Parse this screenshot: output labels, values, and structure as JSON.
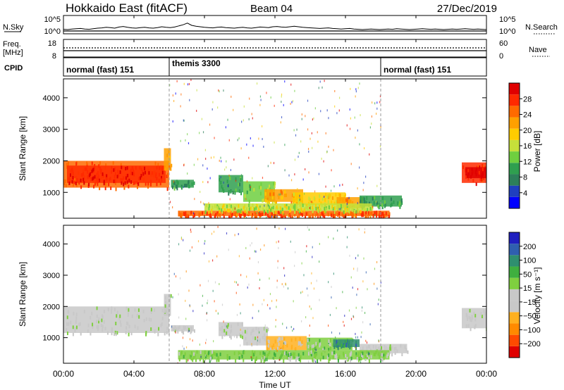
{
  "header": {
    "station": "Hokkaido East (fitACF)",
    "beam": "Beam 04",
    "date": "27/Dec/2019"
  },
  "noise_panel": {
    "left_label": "N.Sky",
    "right_label": "N.Search",
    "ticks": [
      "10^5",
      "10^0"
    ],
    "sky_noise_levels": [
      0.6,
      0.5,
      0.7,
      0.8,
      0.9,
      0.7,
      0.6,
      0.8,
      1.0,
      1.1,
      1.3,
      1.2,
      1.0,
      1.4,
      1.6,
      1.3,
      1.1,
      1.0,
      1.2,
      1.3,
      1.1,
      1.0,
      1.2,
      1.5,
      1.3,
      1.2,
      1.4,
      1.8,
      2.2,
      2.8,
      2.0,
      1.7,
      1.5,
      1.3,
      1.2,
      1.1,
      1.3,
      1.4,
      1.2,
      1.1,
      1.0,
      1.2,
      1.3,
      1.1,
      1.0,
      1.2,
      1.4,
      1.3,
      1.2,
      1.5,
      1.6,
      1.4,
      1.3,
      1.5,
      1.7,
      1.5,
      1.3,
      1.2,
      1.1,
      1.0,
      0.9,
      1.0,
      1.1,
      0.9,
      0.8,
      0.7,
      0.8,
      0.9,
      0.7,
      0.6,
      0.5,
      0.6,
      0.7,
      0.6,
      0.5,
      0.6,
      0.7,
      0.6,
      0.8,
      0.7,
      0.6,
      0.5,
      0.6,
      0.7,
      0.8,
      0.7,
      0.6,
      0.7,
      0.6,
      0.5,
      0.6,
      0.7,
      0.6,
      0.7,
      0.8,
      0.7,
      0.6,
      0.7,
      0.6,
      0.5
    ]
  },
  "freq_panel": {
    "left_label": "Freq.",
    "left_unit": "[MHz]",
    "left_ticks": [
      "18",
      "8"
    ],
    "right_label": "Nave",
    "right_ticks": [
      "60",
      "0"
    ]
  },
  "cpid_panel": {
    "label": "CPID",
    "segments": [
      {
        "name": "normal (fast) 151",
        "start_hour": 0
      },
      {
        "name": "themis 3300",
        "start_hour": 6
      },
      {
        "name": "normal (fast) 151",
        "start_hour": 18
      }
    ]
  },
  "x_axis": {
    "label": "Time UT",
    "ticks": [
      "00:00",
      "04:00",
      "08:00",
      "12:00",
      "16:00",
      "20:00",
      "00:00"
    ],
    "range_hours": [
      0,
      24
    ]
  },
  "chart_data": [
    {
      "type": "heatmap",
      "quantity": "Power",
      "ylabel": "Slant Range [km]",
      "yticks": [
        1000,
        2000,
        3000,
        4000
      ],
      "ylim": [
        180,
        4600
      ],
      "colorbar_label": "Power [dB]",
      "colorbar_ticks": [
        "28",
        "24",
        "20",
        "16",
        "12",
        "8",
        "4"
      ],
      "colors": [
        "#0000ff",
        "#1f3fbf",
        "#2d7f5a",
        "#2f9f4f",
        "#6fcf3f",
        "#c6e03a",
        "#ffcc00",
        "#ffa000",
        "#ff6a00",
        "#ff2a00",
        "#e00000"
      ],
      "vlim": [
        0,
        32
      ],
      "regions": [
        {
          "t0": 0.0,
          "t1": 6.0,
          "r0": 1150,
          "r1": 2000,
          "v": 26
        },
        {
          "t0": 0.2,
          "t1": 5.8,
          "r0": 1300,
          "r1": 1850,
          "v": 29
        },
        {
          "t0": 5.7,
          "t1": 6.1,
          "r0": 1700,
          "r1": 2400,
          "v": 22
        },
        {
          "t0": 6.1,
          "t1": 7.4,
          "r0": 1150,
          "r1": 1400,
          "v": 9
        },
        {
          "t0": 8.8,
          "t1": 10.2,
          "r0": 1000,
          "r1": 1550,
          "v": 10
        },
        {
          "t0": 10.2,
          "t1": 12.0,
          "r0": 700,
          "r1": 1350,
          "v": 14
        },
        {
          "t0": 11.4,
          "t1": 13.6,
          "r0": 700,
          "r1": 1100,
          "v": 22
        },
        {
          "t0": 13.0,
          "t1": 16.0,
          "r0": 600,
          "r1": 1000,
          "v": 18
        },
        {
          "t0": 15.5,
          "t1": 17.0,
          "r0": 500,
          "r1": 850,
          "v": 23
        },
        {
          "t0": 16.8,
          "t1": 19.2,
          "r0": 550,
          "r1": 900,
          "v": 10
        },
        {
          "t0": 6.5,
          "t1": 18.5,
          "r0": 250,
          "r1": 420,
          "v": 26
        },
        {
          "t0": 8.0,
          "t1": 17.5,
          "r0": 420,
          "r1": 650,
          "v": 16
        },
        {
          "t0": 22.6,
          "t1": 24.0,
          "r0": 1300,
          "r1": 1950,
          "v": 28
        },
        {
          "t0": 22.8,
          "t1": 24.0,
          "r0": 1450,
          "r1": 1800,
          "v": 30
        }
      ]
    },
    {
      "type": "heatmap",
      "quantity": "Velocity",
      "ylabel": "Slant Range [km]",
      "yticks": [
        1000,
        2000,
        3000,
        4000
      ],
      "ylim": [
        180,
        4600
      ],
      "colorbar_label": "Velocity [m s⁻¹]",
      "colorbar_ticks": [
        "200",
        "100",
        "50",
        "15",
        "−15",
        "−50",
        "−100",
        "−200"
      ],
      "colors": [
        "#e00000",
        "#ff4a00",
        "#ff8a00",
        "#ffb020",
        "#c8c8c8",
        "#c8c8c8",
        "#7fcf3f",
        "#3faf3f",
        "#2f8f6f",
        "#2f5faf",
        "#1f1fbf"
      ],
      "vlim": [
        -250,
        250
      ],
      "regions": [
        {
          "t0": 0.0,
          "t1": 6.0,
          "r0": 1150,
          "r1": 2000,
          "v": 0
        },
        {
          "t0": 5.7,
          "t1": 6.1,
          "r0": 1700,
          "r1": 2400,
          "v": 0
        },
        {
          "t0": 6.1,
          "t1": 7.4,
          "r0": 1200,
          "r1": 1400,
          "v": 0
        },
        {
          "t0": 8.8,
          "t1": 10.2,
          "r0": 1050,
          "r1": 1500,
          "v": 0
        },
        {
          "t0": 10.2,
          "t1": 11.6,
          "r0": 750,
          "r1": 1350,
          "v": -10
        },
        {
          "t0": 11.5,
          "t1": 13.8,
          "r0": 600,
          "r1": 1050,
          "v": -70
        },
        {
          "t0": 13.8,
          "t1": 16.4,
          "r0": 600,
          "r1": 1000,
          "v": 40
        },
        {
          "t0": 15.3,
          "t1": 16.8,
          "r0": 700,
          "r1": 950,
          "v": 140
        },
        {
          "t0": 16.8,
          "t1": 19.5,
          "r0": 500,
          "r1": 800,
          "v": 0
        },
        {
          "t0": 6.5,
          "t1": 18.5,
          "r0": 300,
          "r1": 600,
          "v": 45
        },
        {
          "t0": 22.6,
          "t1": 24.0,
          "r0": 1300,
          "r1": 1950,
          "v": 0
        }
      ]
    }
  ]
}
